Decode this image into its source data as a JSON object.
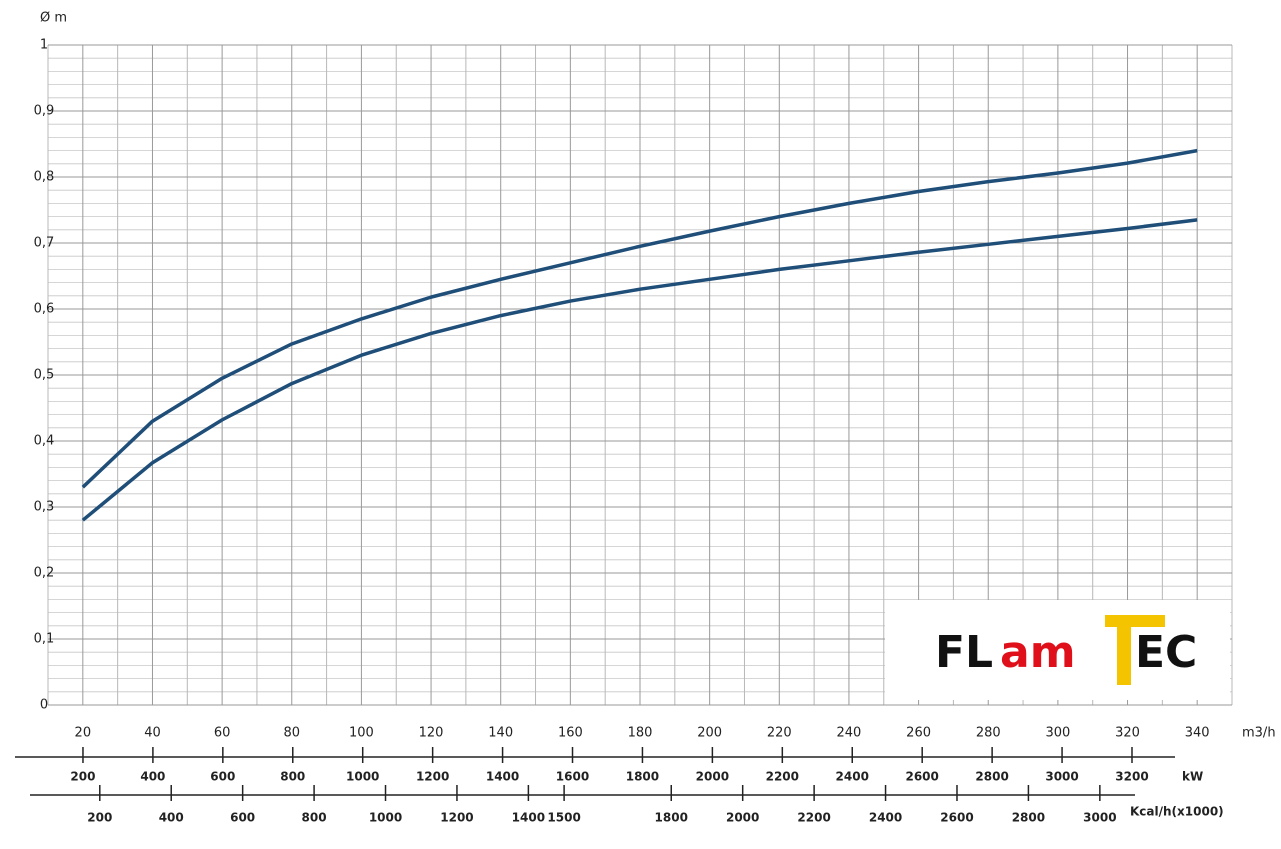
{
  "chart_data": {
    "type": "line",
    "ylabel": "Ø m",
    "xlabel": "m3/h",
    "x": [
      20,
      40,
      60,
      80,
      100,
      120,
      140,
      160,
      180,
      200,
      220,
      240,
      260,
      280,
      300,
      320,
      340
    ],
    "series": [
      {
        "color": "#1f4e79",
        "values": [
          0.33,
          0.43,
          0.495,
          0.547,
          0.585,
          0.618,
          0.645,
          0.67,
          0.695,
          0.718,
          0.74,
          0.76,
          0.778,
          0.793,
          0.806,
          0.821,
          0.84
        ]
      },
      {
        "color": "#1f4e79",
        "values": [
          0.28,
          0.367,
          0.432,
          0.487,
          0.53,
          0.563,
          0.59,
          0.612,
          0.63,
          0.645,
          0.66,
          0.673,
          0.686,
          0.698,
          0.71,
          0.722,
          0.735
        ]
      }
    ],
    "xlim": [
      10,
      350
    ],
    "xticks": [
      20,
      40,
      60,
      80,
      100,
      120,
      140,
      160,
      180,
      200,
      220,
      240,
      260,
      280,
      300,
      320,
      340
    ],
    "xminorticks": [
      10,
      30,
      50,
      70,
      90,
      110,
      130,
      150,
      170,
      190,
      210,
      230,
      250,
      270,
      290,
      310,
      330,
      350
    ],
    "ylim": [
      0,
      1
    ],
    "yticks": [
      0,
      {
        "value": 0.1,
        "label": "0,1"
      },
      {
        "value": 0.2,
        "label": "0,2"
      },
      {
        "value": 0.3,
        "label": "0,3"
      },
      {
        "value": 0.4,
        "label": "0,4"
      },
      {
        "value": 0.5,
        "label": "0,5"
      },
      {
        "value": 0.6,
        "label": "0,6"
      },
      {
        "value": 0.7,
        "label": "0,7"
      },
      {
        "value": 0.8,
        "label": "0,8"
      },
      {
        "value": 0.9,
        "label": "0,9"
      },
      1
    ],
    "yminorticks": [
      0.02,
      0.04,
      0.06,
      0.08,
      0.12,
      0.14,
      0.16,
      0.18,
      0.22,
      0.24,
      0.26,
      0.28,
      0.32,
      0.34,
      0.36,
      0.38,
      0.42,
      0.44,
      0.46,
      0.48,
      0.52,
      0.54,
      0.56,
      0.58,
      0.62,
      0.64,
      0.66,
      0.68,
      0.72,
      0.74,
      0.76,
      0.78,
      0.82,
      0.84,
      0.86,
      0.88,
      0.92,
      0.94,
      0.96,
      0.98
    ],
    "grid": true,
    "x2label": "kW",
    "x2lim": [
      100,
      3486
    ],
    "x2ticks": [
      200,
      400,
      600,
      800,
      1000,
      1200,
      1400,
      1600,
      1800,
      2000,
      2200,
      2400,
      2600,
      2800,
      3000,
      3200
    ],
    "x3label": "Kcal/h(x1000)",
    "x3lim": [
      55,
      3370
    ],
    "x3ticks": [
      200,
      400,
      600,
      800,
      1000,
      1200,
      1400,
      1500,
      1800,
      2000,
      2200,
      2400,
      2600,
      2800,
      3000
    ]
  },
  "logo": {
    "parts": [
      "FL",
      "am",
      "T",
      "EC"
    ]
  }
}
